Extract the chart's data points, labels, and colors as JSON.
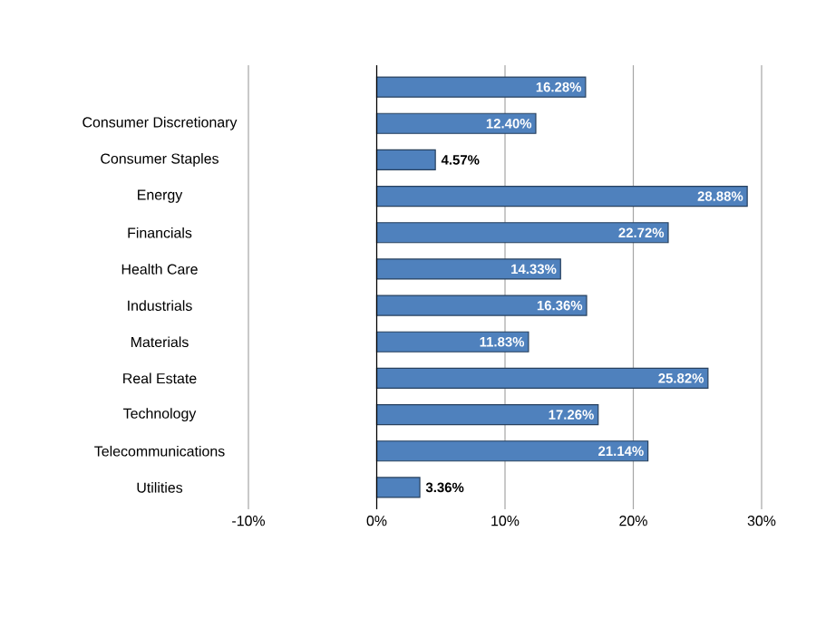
{
  "chart_data": {
    "type": "bar",
    "orientation": "horizontal",
    "categories": [
      null,
      "Consumer Discretionary",
      "Consumer Staples",
      "Energy",
      "Financials",
      "Health Care",
      "Industrials",
      "Materials",
      "Real Estate",
      "Technology",
      "Telecommunications",
      "Utilities"
    ],
    "values": [
      16.28,
      12.4,
      4.57,
      28.88,
      22.72,
      14.33,
      16.36,
      11.83,
      25.82,
      17.26,
      21.14,
      3.36
    ],
    "value_labels": [
      "16.28%",
      "12.40%",
      "4.57%",
      "28.88%",
      "22.72%",
      "14.33%",
      "16.36%",
      "11.83%",
      "25.82%",
      "17.26%",
      "21.14%",
      "3.36%"
    ],
    "color": "#4f81bd",
    "xlim": [
      -10,
      30
    ],
    "xticks": [
      {
        "value": -10,
        "label": "-10%"
      },
      {
        "value": 0,
        "label": "0%"
      },
      {
        "value": 10,
        "label": "10%"
      },
      {
        "value": 20,
        "label": "20%"
      },
      {
        "value": 30,
        "label": "30%"
      }
    ],
    "grid": "x"
  }
}
